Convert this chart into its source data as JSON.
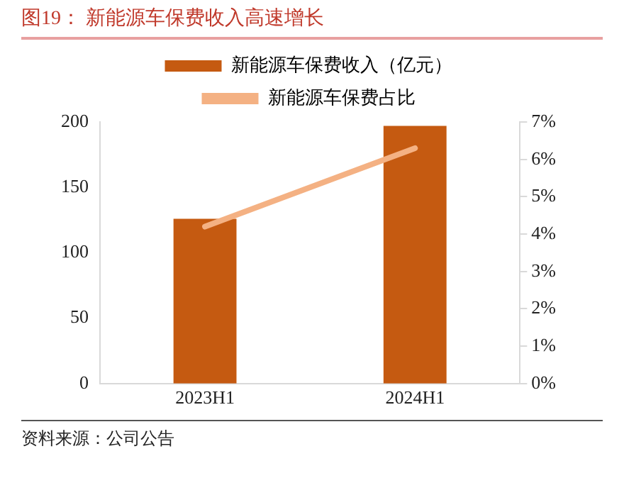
{
  "chart_data": {
    "type": "bar",
    "title": "图19：  新能源车保费收入高速增长",
    "categories": [
      "2023H1",
      "2024H1"
    ],
    "series": [
      {
        "name": "新能源车保费收入（亿元）",
        "color": "#c55a11",
        "values": [
          126,
          197
        ]
      },
      {
        "name": "新能源车保费占比",
        "type": "line",
        "axis": "y2",
        "color": "#f4b183",
        "values": [
          4.2,
          6.3
        ]
      }
    ],
    "ylim": [
      0,
      200
    ],
    "yticks": [
      0,
      50,
      100,
      150,
      200
    ],
    "y2lim": [
      0,
      7
    ],
    "y2ticks": [
      {
        "value": 0,
        "label": "0%"
      },
      {
        "value": 1,
        "label": "1%"
      },
      {
        "value": 2,
        "label": "2%"
      },
      {
        "value": 3,
        "label": "3%"
      },
      {
        "value": 4,
        "label": "4%"
      },
      {
        "value": 5,
        "label": "5%"
      },
      {
        "value": 6,
        "label": "6%"
      },
      {
        "value": 7,
        "label": "7%"
      }
    ],
    "legend": "top",
    "grid": false,
    "marker": "none",
    "annotations": [
      "资料来源：公司公告"
    ]
  }
}
